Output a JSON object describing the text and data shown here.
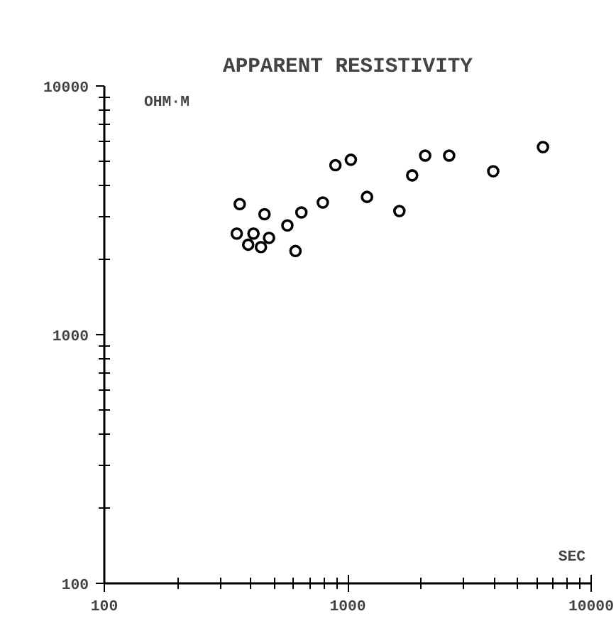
{
  "chart_data": {
    "type": "scatter",
    "title": "APPARENT RESISTIVITY",
    "xlabel": "SEC",
    "ylabel": "OHM·M",
    "log": "xy",
    "xlim": [
      100,
      10000
    ],
    "ylim": [
      100,
      10000
    ],
    "xticks": [
      100,
      1000,
      10000
    ],
    "yticks": [
      100,
      1000,
      10000
    ],
    "grid": false,
    "marker": "circle",
    "x": [
      350,
      360,
      410,
      390,
      440,
      475,
      455,
      565,
      610,
      645,
      790,
      890,
      1030,
      1200,
      1630,
      1840,
      2080,
      2610,
      3960,
      6340
    ],
    "series": [
      {
        "color": "#000000",
        "values": [
          2550,
          3350,
          2550,
          2300,
          2250,
          2450,
          3050,
          2750,
          2170,
          3100,
          3400,
          4800,
          5050,
          3580,
          3140,
          4370,
          5250,
          5250,
          4540,
          5680
        ]
      }
    ]
  }
}
